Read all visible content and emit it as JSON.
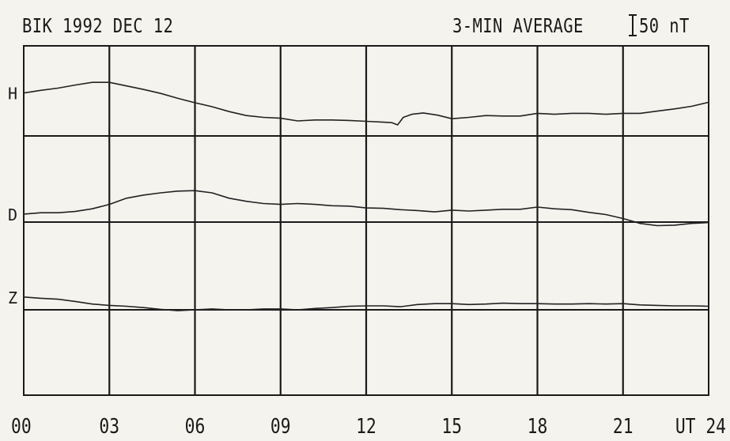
{
  "header": {
    "left_title": "BIK 1992 DEC 12",
    "right_title": "3-MIN AVERAGE",
    "scale_label": "50 nT"
  },
  "chart_data": {
    "type": "line",
    "x_unit_label": "UT",
    "xlim": [
      0,
      24
    ],
    "x_ticks": [
      {
        "value": 0,
        "label": "00"
      },
      {
        "value": 3,
        "label": "03"
      },
      {
        "value": 6,
        "label": "06"
      },
      {
        "value": 9,
        "label": "09"
      },
      {
        "value": 12,
        "label": "12"
      },
      {
        "value": 15,
        "label": "15"
      },
      {
        "value": 18,
        "label": "18"
      },
      {
        "value": 21,
        "label": "21"
      },
      {
        "value": 24,
        "label": "24"
      }
    ],
    "scale_bar_nT": 50,
    "series": [
      {
        "name": "H",
        "baseline_nT": 0,
        "x": [
          0,
          0.6,
          1.2,
          1.8,
          2.4,
          3.0,
          3.6,
          4.2,
          4.8,
          5.4,
          6.0,
          6.6,
          7.2,
          7.8,
          8.4,
          9.0,
          9.6,
          10.2,
          10.8,
          11.4,
          12.0,
          12.6,
          12.9,
          13.1,
          13.3,
          13.6,
          14.0,
          14.5,
          15.0,
          15.6,
          16.2,
          16.8,
          17.4,
          18.0,
          18.6,
          19.2,
          19.8,
          20.4,
          21.0,
          21.6,
          22.2,
          22.8,
          23.4,
          24.0
        ],
        "y": [
          97,
          103,
          108,
          115,
          121,
          121,
          113,
          105,
          96,
          85,
          75,
          66,
          55,
          46,
          42,
          40,
          34,
          36,
          36,
          35,
          33,
          31,
          30,
          25,
          42,
          49,
          52,
          47,
          39,
          42,
          46,
          45,
          45,
          51,
          49,
          51,
          51,
          49,
          51,
          51,
          56,
          61,
          67,
          76
        ]
      },
      {
        "name": "D",
        "baseline_nT": 0,
        "x": [
          0,
          0.6,
          1.2,
          1.8,
          2.4,
          3.0,
          3.6,
          4.2,
          4.8,
          5.4,
          6.0,
          6.6,
          7.2,
          7.8,
          8.4,
          9.0,
          9.6,
          10.2,
          10.8,
          11.4,
          12.0,
          12.6,
          13.2,
          13.8,
          14.4,
          15.0,
          15.6,
          16.2,
          16.8,
          17.4,
          18.0,
          18.6,
          19.2,
          19.8,
          20.4,
          21.0,
          21.6,
          22.2,
          22.8,
          23.4,
          24.0
        ],
        "y": [
          18,
          21,
          21,
          24,
          30,
          40,
          54,
          61,
          66,
          70,
          71,
          66,
          54,
          47,
          42,
          40,
          42,
          40,
          37,
          36,
          32,
          31,
          28,
          26,
          23,
          27,
          25,
          27,
          29,
          29,
          34,
          30,
          28,
          22,
          17,
          8,
          -3,
          -8,
          -7,
          -3,
          -1
        ]
      },
      {
        "name": "Z",
        "baseline_nT": 0,
        "x": [
          0,
          0.6,
          1.2,
          1.8,
          2.4,
          3.0,
          3.6,
          4.2,
          4.8,
          5.4,
          6.0,
          6.6,
          7.2,
          7.8,
          8.4,
          9.0,
          9.6,
          10.2,
          10.8,
          11.4,
          12.0,
          12.6,
          13.2,
          13.8,
          14.4,
          15.0,
          15.6,
          16.2,
          16.8,
          17.4,
          18.0,
          18.6,
          19.2,
          19.8,
          20.4,
          21.0,
          21.6,
          22.2,
          22.8,
          23.4,
          24.0
        ],
        "y": [
          29,
          26,
          24,
          19,
          13,
          10,
          8,
          5,
          1,
          -2,
          0,
          2,
          0,
          0,
          2,
          2,
          0,
          3,
          5,
          8,
          9,
          9,
          7,
          12,
          14,
          14,
          12,
          13,
          15,
          14,
          14,
          13,
          13,
          14,
          13,
          14,
          11,
          10,
          9,
          9,
          8
        ]
      }
    ]
  }
}
